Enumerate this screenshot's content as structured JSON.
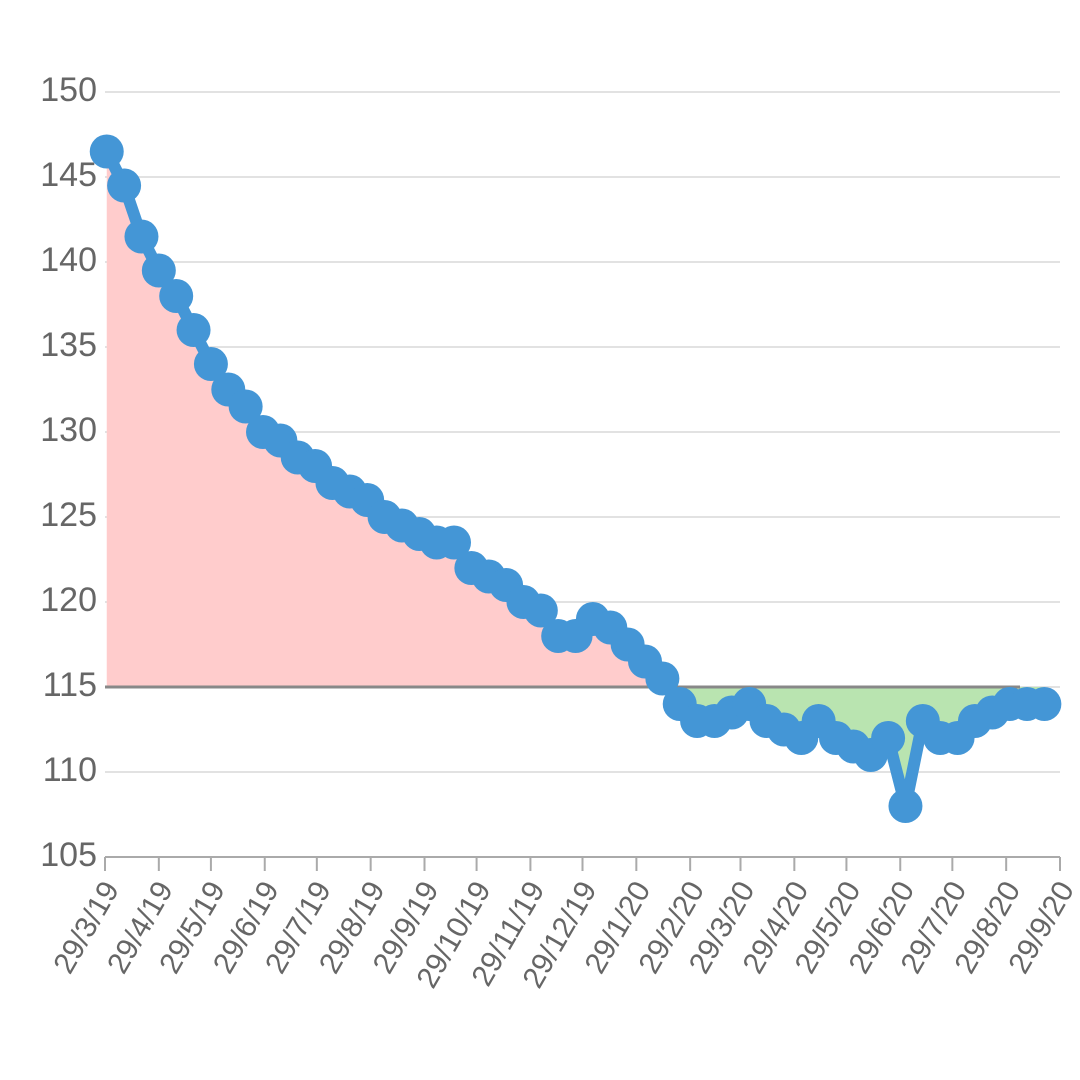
{
  "chart_data": {
    "type": "line",
    "x": [
      "2019-03-30",
      "2019-04-09",
      "2019-04-19",
      "2019-04-29",
      "2019-05-09",
      "2019-05-19",
      "2019-05-29",
      "2019-06-08",
      "2019-06-18",
      "2019-06-28",
      "2019-07-08",
      "2019-07-18",
      "2019-07-28",
      "2019-08-07",
      "2019-08-17",
      "2019-08-27",
      "2019-09-06",
      "2019-09-16",
      "2019-09-26",
      "2019-10-06",
      "2019-10-16",
      "2019-10-26",
      "2019-11-05",
      "2019-11-15",
      "2019-11-25",
      "2019-12-05",
      "2019-12-15",
      "2019-12-25",
      "2020-01-04",
      "2020-01-14",
      "2020-01-24",
      "2020-02-03",
      "2020-02-13",
      "2020-02-23",
      "2020-03-04",
      "2020-03-14",
      "2020-03-24",
      "2020-04-03",
      "2020-04-13",
      "2020-04-23",
      "2020-05-03",
      "2020-05-13",
      "2020-05-23",
      "2020-06-02",
      "2020-06-12",
      "2020-06-22",
      "2020-07-02",
      "2020-07-12",
      "2020-07-22",
      "2020-08-01",
      "2020-08-11",
      "2020-08-21",
      "2020-08-31",
      "2020-09-10",
      "2020-09-20"
    ],
    "series": [
      {
        "color": "#4496d6",
        "values": [
          146.5,
          144.5,
          141.5,
          139.5,
          138,
          136,
          134,
          132.5,
          131.5,
          130,
          129.5,
          128.5,
          128,
          127,
          126.5,
          126,
          125,
          124.5,
          124,
          123.5,
          123.5,
          122,
          121.5,
          121,
          120,
          119.5,
          118,
          118,
          119,
          118.5,
          117.5,
          116.5,
          115.5,
          114,
          113,
          113,
          113.5,
          114,
          113,
          112.5,
          112,
          113,
          112,
          111.5,
          111,
          112,
          108,
          113,
          112,
          112,
          113,
          113.5,
          114,
          114,
          114
        ]
      }
    ],
    "baseline": 115,
    "above_color": "#ffcccc",
    "below_color": "#b9e4b0",
    "baseline_color": "#888888",
    "xlim": [
      "2019-03-29",
      "2020-09-29"
    ],
    "xticks": [
      {
        "value": "2019-03-29",
        "label": "29/3/19"
      },
      {
        "value": "2019-04-29",
        "label": "29/4/19"
      },
      {
        "value": "2019-05-29",
        "label": "29/5/19"
      },
      {
        "value": "2019-06-29",
        "label": "29/6/19"
      },
      {
        "value": "2019-07-29",
        "label": "29/7/19"
      },
      {
        "value": "2019-08-29",
        "label": "29/8/19"
      },
      {
        "value": "2019-09-29",
        "label": "29/9/19"
      },
      {
        "value": "2019-10-29",
        "label": "29/10/19"
      },
      {
        "value": "2019-11-29",
        "label": "29/11/19"
      },
      {
        "value": "2019-12-29",
        "label": "29/12/19"
      },
      {
        "value": "2020-01-29",
        "label": "29/1/20"
      },
      {
        "value": "2020-02-29",
        "label": "29/2/20"
      },
      {
        "value": "2020-03-29",
        "label": "29/3/20"
      },
      {
        "value": "2020-04-29",
        "label": "29/4/20"
      },
      {
        "value": "2020-05-29",
        "label": "29/5/20"
      },
      {
        "value": "2020-06-29",
        "label": "29/6/20"
      },
      {
        "value": "2020-07-29",
        "label": "29/7/20"
      },
      {
        "value": "2020-08-29",
        "label": "29/8/20"
      },
      {
        "value": "2020-09-29",
        "label": "29/9/20"
      }
    ],
    "ylim": [
      105,
      150
    ],
    "yticks": [
      105,
      110,
      115,
      120,
      125,
      130,
      135,
      140,
      145,
      150
    ],
    "grid": true
  }
}
